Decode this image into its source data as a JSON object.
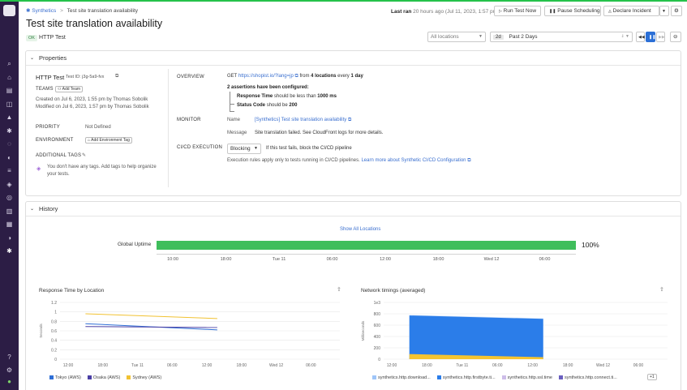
{
  "breadcrumb": {
    "link": "Synthetics",
    "current": "Test site translation availability"
  },
  "header": {
    "title": "Test site translation availability",
    "status_badge": "OK",
    "test_type": "HTTP Test",
    "last_ran_label": "Last ran",
    "last_ran_value": "20 hours ago (Jul 11, 2023, 1:57 pm)",
    "run_now": "Run Test Now",
    "pause": "Pause Scheduling",
    "declare": "Declare Incident"
  },
  "filters": {
    "locations_placeholder": "All locations",
    "range_chip": "2d",
    "range_label": "Past 2 Days"
  },
  "properties": {
    "section_title": "Properties",
    "test_name": "HTTP Test",
    "test_id": "Test ID: j3g-5a9-fvx",
    "teams_label": "TEAMS",
    "add_team": "Add Team",
    "created": "Created on Jul 6, 2023, 1:55 pm by Thomas Sobolik",
    "modified": "Modified on Jul 6, 2023, 1:57 pm by Thomas Sobolik",
    "priority_label": "PRIORITY",
    "priority_value": "Not Defined",
    "environment_label": "ENVIRONMENT",
    "add_environment": "Add Environment Tag",
    "tags_label": "ADDITIONAL TAGS",
    "tags_empty_1": "You don't have any tags. Add tags to help organize",
    "tags_empty_2": "your tests.",
    "overview_label": "OVERVIEW",
    "overview_method": "GET",
    "overview_url": "https://shopist.io/?lang=jp",
    "overview_from": "from",
    "overview_locations": "4 locations",
    "overview_every": "every",
    "overview_freq": "1 day",
    "assertions_title": "2 assertions have been configured:",
    "assertion1_a": "Response Time",
    "assertion1_b": "should be less than",
    "assertion1_c": "1000 ms",
    "assertion2_a": "Status Code",
    "assertion2_b": "should be",
    "assertion2_c": "200",
    "monitor_label": "MONITOR",
    "name_label": "Name",
    "name_value": "[Synthetics] Test site translation availability",
    "message_label": "Message",
    "message_value": "Site translation failed. See CloudFront logs for more details.",
    "cicd_label": "CI/CD EXECUTION",
    "cicd_select": "Blocking",
    "cicd_desc": "If this test fails, block the CI/CD pipeline",
    "cicd_note": "Execution rules apply only to tests running in CI/CD pipelines.",
    "cicd_link": "Learn more about Synthetic CI/CD Configuration"
  },
  "history": {
    "section_title": "History",
    "show_all": "Show All Locations",
    "uptime_label": "Global Uptime",
    "uptime_value": "100%",
    "uptime_fraction": 1.0,
    "uptime_ticks": [
      "10:00",
      "18:00",
      "Tue 11",
      "06:00",
      "12:00",
      "18:00",
      "Wed 12",
      "06:00"
    ]
  },
  "chart_data": [
    {
      "type": "line",
      "title": "Response Time by Location",
      "ylabel": "Seconds",
      "ylim": [
        0,
        1.2
      ],
      "yticks": [
        "1.2",
        "1",
        "0.8",
        "0.6",
        "0.4",
        "0.2",
        "0"
      ],
      "x": [
        "12:00",
        "18:00",
        "Tue 11",
        "06:00",
        "12:00",
        "18:00",
        "Wed 12",
        "06:00"
      ],
      "series": [
        {
          "name": "Tokyo (AWS)",
          "color": "#2f6fd6",
          "points": [
            [
              0.5,
              0.75
            ],
            [
              4.3,
              0.62
            ]
          ]
        },
        {
          "name": "Osaka (AWS)",
          "color": "#4a3fa5",
          "points": [
            [
              0.5,
              0.69
            ],
            [
              4.3,
              0.67
            ]
          ]
        },
        {
          "name": "Sydney (AWS)",
          "color": "#f1c232",
          "points": [
            [
              0.5,
              0.96
            ],
            [
              4.3,
              0.86
            ]
          ]
        }
      ]
    },
    {
      "type": "area",
      "title": "Network timings (averaged)",
      "ylabel": "Milliseconds",
      "unit": "1e3",
      "ylim": [
        0,
        1000
      ],
      "yticks": [
        "1e3",
        "800",
        "600",
        "400",
        "200",
        "0"
      ],
      "x": [
        "12:00",
        "18:00",
        "Tue 11",
        "06:00",
        "12:00",
        "18:00",
        "Wed 12",
        "06:00"
      ],
      "series": [
        {
          "name": "synthetics.http.download...",
          "color": "#9fc5f8",
          "points": [
            [
              0.5,
              780
            ],
            [
              4.3,
              720
            ]
          ]
        },
        {
          "name": "synthetics.http.firstbyte.ti...",
          "color": "#2b7de9",
          "points": [
            [
              0.5,
              770
            ],
            [
              4.3,
              710
            ]
          ]
        },
        {
          "name": "synthetics.http.ssl.time",
          "color": "#cdbde8",
          "points": [
            [
              0.5,
              0
            ],
            [
              4.3,
              0
            ]
          ]
        },
        {
          "name": "synthetics.http.connect.ti...",
          "color": "#6a5fbf",
          "points": [
            [
              0.5,
              0
            ],
            [
              4.3,
              0
            ]
          ]
        },
        {
          "name": "",
          "color": "#f4c430",
          "points": [
            [
              0.5,
              90
            ],
            [
              4.3,
              35
            ]
          ]
        }
      ],
      "more": "+1"
    }
  ]
}
